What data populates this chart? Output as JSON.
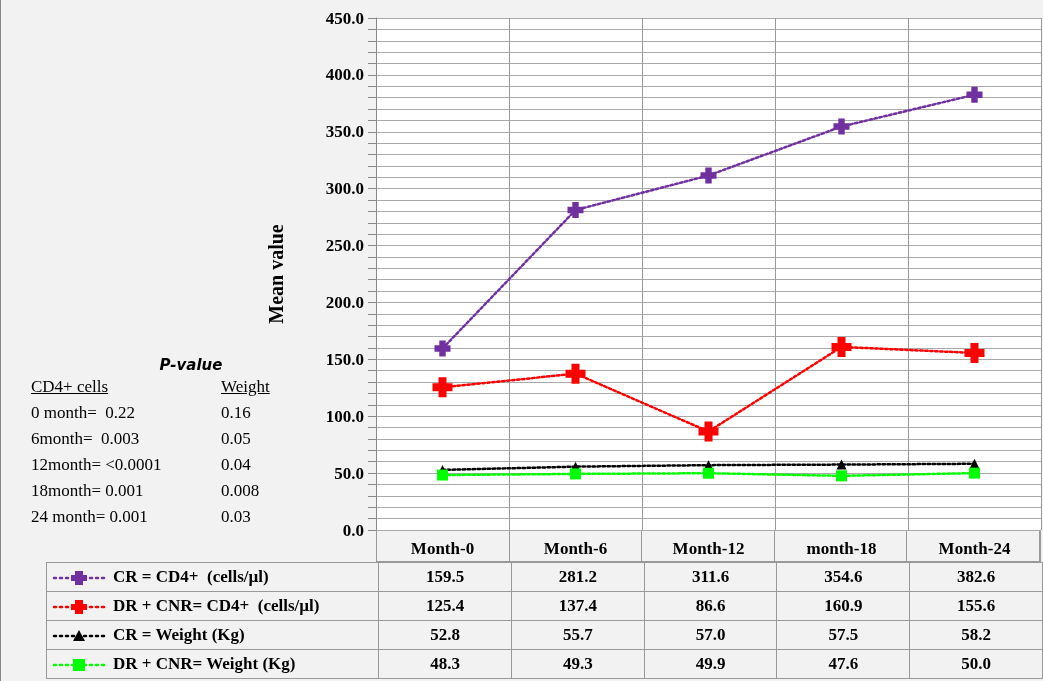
{
  "chart_data": {
    "type": "line",
    "ylabel": "Mean value",
    "categories": [
      "Month-0",
      "Month-6",
      "Month-12",
      "month-18",
      "Month-24"
    ],
    "series": [
      {
        "name": "CR = CD4+  (cells/µl)",
        "color": "#7030a0",
        "marker": "cross",
        "values": [
          159.5,
          281.2,
          311.6,
          354.6,
          382.6
        ],
        "value_labels": [
          "159.5",
          "281.2",
          "311.6",
          "354.6",
          "382.6"
        ]
      },
      {
        "name": "DR + CNR= CD4+  (cells/µl)",
        "color": "#ff0000",
        "marker": "cross",
        "values": [
          125.4,
          137.4,
          86.6,
          160.9,
          155.6
        ],
        "value_labels": [
          "125.4",
          "137.4",
          "86.6",
          "160.9",
          "155.6"
        ]
      },
      {
        "name": "CR = Weight (Kg)",
        "color": "#000000",
        "marker": "triangle",
        "values": [
          52.8,
          55.7,
          57.0,
          57.5,
          58.2
        ],
        "value_labels": [
          "52.8",
          "55.7",
          "57.0",
          "57.5",
          "58.2"
        ]
      },
      {
        "name": "DR + CNR= Weight (Kg)",
        "color": "#00ff00",
        "marker": "square",
        "values": [
          48.3,
          49.3,
          49.9,
          47.6,
          50.0
        ],
        "value_labels": [
          "48.3",
          "49.3",
          "49.9",
          "47.6",
          "50.0"
        ]
      }
    ],
    "ylim": [
      0,
      450
    ],
    "yticks": [
      {
        "value": 0,
        "label": "0.0"
      },
      {
        "value": 10,
        "label": null
      },
      {
        "value": 20,
        "label": null
      },
      {
        "value": 30,
        "label": null
      },
      {
        "value": 40,
        "label": null
      },
      {
        "value": 50,
        "label": "50.0"
      },
      {
        "value": 60,
        "label": null
      },
      {
        "value": 70,
        "label": null
      },
      {
        "value": 80,
        "label": null
      },
      {
        "value": 90,
        "label": null
      },
      {
        "value": 100,
        "label": "100.0"
      },
      {
        "value": 110,
        "label": null
      },
      {
        "value": 120,
        "label": null
      },
      {
        "value": 130,
        "label": null
      },
      {
        "value": 140,
        "label": null
      },
      {
        "value": 150,
        "label": "150.0"
      },
      {
        "value": 160,
        "label": null
      },
      {
        "value": 170,
        "label": null
      },
      {
        "value": 180,
        "label": null
      },
      {
        "value": 190,
        "label": null
      },
      {
        "value": 200,
        "label": "200.0"
      },
      {
        "value": 210,
        "label": null
      },
      {
        "value": 220,
        "label": null
      },
      {
        "value": 230,
        "label": null
      },
      {
        "value": 240,
        "label": null
      },
      {
        "value": 250,
        "label": "250.0"
      },
      {
        "value": 260,
        "label": null
      },
      {
        "value": 270,
        "label": null
      },
      {
        "value": 280,
        "label": null
      },
      {
        "value": 290,
        "label": null
      },
      {
        "value": 300,
        "label": "300.0"
      },
      {
        "value": 310,
        "label": null
      },
      {
        "value": 320,
        "label": null
      },
      {
        "value": 330,
        "label": null
      },
      {
        "value": 340,
        "label": null
      },
      {
        "value": 350,
        "label": "350.0"
      },
      {
        "value": 360,
        "label": null
      },
      {
        "value": 370,
        "label": null
      },
      {
        "value": 380,
        "label": null
      },
      {
        "value": 390,
        "label": null
      },
      {
        "value": 400,
        "label": "400.0"
      },
      {
        "value": 410,
        "label": null
      },
      {
        "value": 420,
        "label": null
      },
      {
        "value": 430,
        "label": null
      },
      {
        "value": 440,
        "label": null
      },
      {
        "value": 450,
        "label": "450.0"
      }
    ],
    "grid": true,
    "legend": "bottom",
    "line_style": "dotted",
    "annotations": [
      "P-value",
      "CD4+ cells",
      "Weight",
      "0 month=  0.22",
      "0.16",
      "6month=  0.003",
      "0.05",
      "12month= <0.0001",
      "0.04",
      "18month= 0.001",
      "0.008",
      "24 month= 0.001",
      "0.03"
    ]
  }
}
